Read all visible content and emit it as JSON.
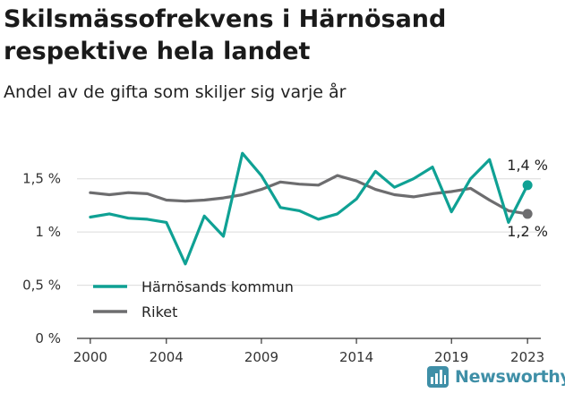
{
  "header": {
    "title": "Skilsmässofrekvens i Härnösand respektive hela landet",
    "subtitle": "Andel av de gifta som skiljer sig varje år"
  },
  "logo": {
    "text": "Newsworthy",
    "icon": "bar-chart-logo-icon",
    "color": "#3f8fa7"
  },
  "chart_data": {
    "type": "line",
    "x": [
      2000,
      2001,
      2002,
      2003,
      2004,
      2005,
      2006,
      2007,
      2008,
      2009,
      2010,
      2011,
      2012,
      2013,
      2014,
      2015,
      2016,
      2017,
      2018,
      2019,
      2020,
      2021,
      2022,
      2023
    ],
    "x_ticks": [
      2000,
      2004,
      2009,
      2014,
      2019,
      2023
    ],
    "xlim": [
      1999.3,
      2023.7
    ],
    "y_ticks": [
      {
        "value": 0,
        "label": "0 %"
      },
      {
        "value": 0.5,
        "label": "0,5 %"
      },
      {
        "value": 1.0,
        "label": "1 %"
      },
      {
        "value": 1.5,
        "label": "1,5 %"
      }
    ],
    "ylim": [
      0,
      1.75
    ],
    "grid": true,
    "legend_position": "bottom-left",
    "series": [
      {
        "name": "Härnösands kommun",
        "color": "#0fa194",
        "values": [
          1.14,
          1.17,
          1.13,
          1.12,
          1.09,
          0.7,
          1.15,
          0.96,
          1.74,
          1.53,
          1.23,
          1.2,
          1.12,
          1.17,
          1.31,
          1.57,
          1.42,
          1.5,
          1.61,
          1.19,
          1.5,
          1.68,
          1.09,
          1.44
        ],
        "end_label": "1,4 %"
      },
      {
        "name": "Riket",
        "color": "#6d6d6f",
        "values": [
          1.37,
          1.35,
          1.37,
          1.36,
          1.3,
          1.29,
          1.3,
          1.32,
          1.35,
          1.4,
          1.47,
          1.45,
          1.44,
          1.53,
          1.48,
          1.4,
          1.35,
          1.33,
          1.36,
          1.38,
          1.41,
          1.3,
          1.2,
          1.17
        ],
        "end_label": "1,2 %"
      }
    ]
  }
}
